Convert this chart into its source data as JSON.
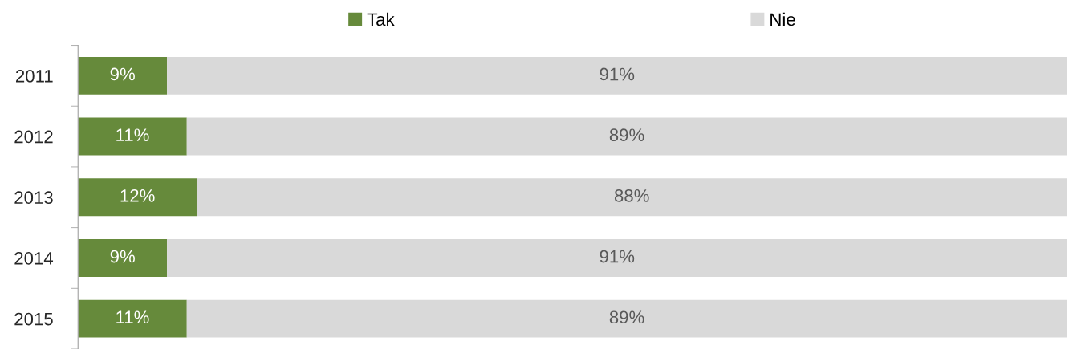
{
  "chart_data": {
    "type": "bar",
    "orientation": "horizontal",
    "stacked": true,
    "categories": [
      "2011",
      "2012",
      "2013",
      "2014",
      "2015"
    ],
    "series": [
      {
        "name": "Tak",
        "color": "#668a3b",
        "values": [
          9,
          11,
          12,
          9,
          11
        ],
        "value_labels": [
          "9%",
          "11%",
          "12%",
          "9%",
          "11%"
        ]
      },
      {
        "name": "Nie",
        "color": "#d9d9d9",
        "values": [
          91,
          89,
          88,
          91,
          89
        ],
        "value_labels": [
          "91%",
          "89%",
          "88%",
          "91%",
          "89%"
        ]
      }
    ],
    "legend": "top",
    "grid": false,
    "tick_labels": "y"
  }
}
